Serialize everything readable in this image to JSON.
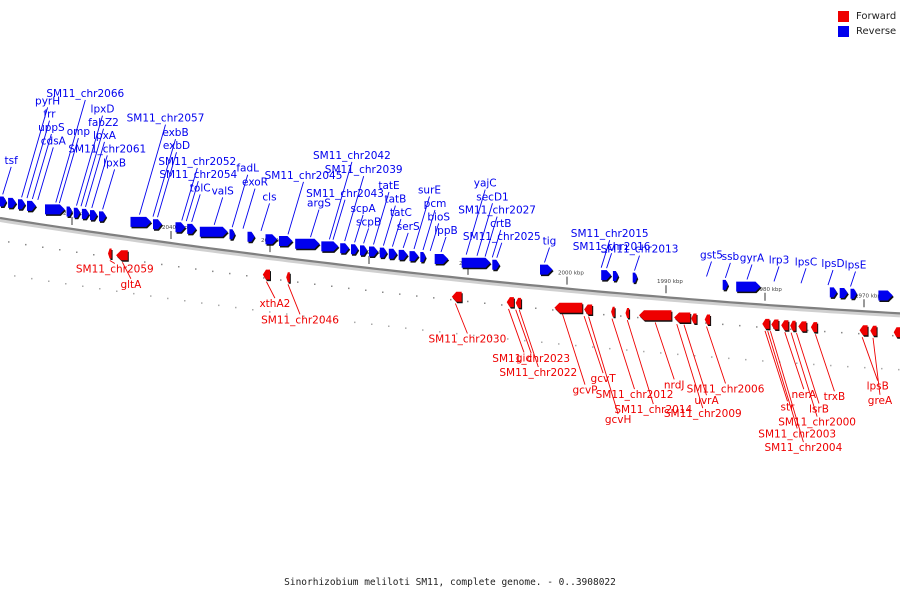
{
  "legend": [
    {
      "label": "Forward",
      "color": "#ee0000"
    },
    {
      "label": "Reverse",
      "color": "#0000ee"
    }
  ],
  "caption": "Sinorhizobium meliloti SM11, complete genome. - 0..3908022",
  "colors": {
    "forward": "#ee0000",
    "reverse": "#0000ee",
    "backbone": "#808080"
  },
  "scale_ticks": [
    {
      "label": "2050 kbp",
      "pos": 8
    },
    {
      "label": "2040 kbp",
      "pos": 19
    },
    {
      "label": "2030 kbp",
      "pos": 30
    },
    {
      "label": "2020 kbp",
      "pos": 41
    },
    {
      "label": "2010 kbp",
      "pos": 52
    },
    {
      "label": "2000 kbp",
      "pos": 63
    },
    {
      "label": "1990 kbp",
      "pos": 74
    },
    {
      "label": "1980 kbp",
      "pos": 85
    },
    {
      "label": "1970 kbp",
      "pos": 96
    }
  ],
  "reverse_genes": [
    {
      "s": 0.0,
      "e": 0.7
    },
    {
      "s": 0.9,
      "e": 1.8
    },
    {
      "s": 2.0,
      "e": 2.8
    },
    {
      "s": 3.0,
      "e": 4.0
    },
    {
      "s": 5.0,
      "e": 7.2
    },
    {
      "s": 7.4,
      "e": 8.0
    },
    {
      "s": 8.2,
      "e": 8.9
    },
    {
      "s": 9.1,
      "e": 9.9
    },
    {
      "s": 10.0,
      "e": 10.8
    },
    {
      "s": 11.0,
      "e": 11.8
    },
    {
      "s": 14.5,
      "e": 16.8
    },
    {
      "s": 17.0,
      "e": 18.0
    },
    {
      "s": 19.5,
      "e": 20.6
    },
    {
      "s": 20.8,
      "e": 21.8
    },
    {
      "s": 22.2,
      "e": 25.3
    },
    {
      "s": 25.5,
      "e": 26.1
    },
    {
      "s": 27.5,
      "e": 28.3
    },
    {
      "s": 29.5,
      "e": 30.8
    },
    {
      "s": 31.0,
      "e": 32.5
    },
    {
      "s": 32.8,
      "e": 35.5
    },
    {
      "s": 35.7,
      "e": 37.6
    },
    {
      "s": 37.8,
      "e": 38.8
    },
    {
      "s": 39.0,
      "e": 39.8
    },
    {
      "s": 40.0,
      "e": 40.8
    },
    {
      "s": 41.0,
      "e": 42.0
    },
    {
      "s": 42.2,
      "e": 43.0
    },
    {
      "s": 43.2,
      "e": 44.1
    },
    {
      "s": 44.3,
      "e": 45.3
    },
    {
      "s": 45.5,
      "e": 46.5
    },
    {
      "s": 46.7,
      "e": 47.3
    },
    {
      "s": 48.3,
      "e": 49.8
    },
    {
      "s": 51.3,
      "e": 54.5
    },
    {
      "s": 54.7,
      "e": 55.5
    },
    {
      "s": 60.0,
      "e": 61.4
    },
    {
      "s": 66.8,
      "e": 67.9
    },
    {
      "s": 68.1,
      "e": 68.7
    },
    {
      "s": 70.3,
      "e": 70.8
    },
    {
      "s": 80.3,
      "e": 80.9
    },
    {
      "s": 81.8,
      "e": 84.5
    },
    {
      "s": 92.2,
      "e": 93.0
    },
    {
      "s": 93.3,
      "e": 94.2
    },
    {
      "s": 94.5,
      "e": 95.2
    },
    {
      "s": 97.6,
      "e": 99.2
    }
  ],
  "forward_genes": [
    {
      "s": 12.0,
      "e": 12.4
    },
    {
      "s": 12.9,
      "e": 14.2
    },
    {
      "s": 29.2,
      "e": 30.0
    },
    {
      "s": 31.8,
      "e": 32.2
    },
    {
      "s": 50.2,
      "e": 51.3
    },
    {
      "s": 56.3,
      "e": 57.1
    },
    {
      "s": 57.3,
      "e": 57.9
    },
    {
      "s": 61.6,
      "e": 64.7
    },
    {
      "s": 64.9,
      "e": 65.8
    },
    {
      "s": 67.9,
      "e": 68.3
    },
    {
      "s": 69.5,
      "e": 69.9
    },
    {
      "s": 71.0,
      "e": 74.6
    },
    {
      "s": 74.9,
      "e": 76.7
    },
    {
      "s": 76.8,
      "e": 77.4
    },
    {
      "s": 78.3,
      "e": 78.9
    },
    {
      "s": 84.7,
      "e": 85.5
    },
    {
      "s": 85.7,
      "e": 86.5
    },
    {
      "s": 86.8,
      "e": 87.6
    },
    {
      "s": 87.8,
      "e": 88.4
    },
    {
      "s": 88.7,
      "e": 89.6
    },
    {
      "s": 90.1,
      "e": 90.8
    },
    {
      "s": 95.5,
      "e": 96.4
    },
    {
      "s": 96.7,
      "e": 97.4
    },
    {
      "s": 99.3,
      "e": 100.0
    }
  ],
  "reverse_labels": [
    {
      "text": "tsf",
      "pos": 0.3,
      "level": 1
    },
    {
      "text": "pyrH",
      "pos": 2.4,
      "level": 6
    },
    {
      "text": "frr",
      "pos": 3.0,
      "level": 5
    },
    {
      "text": "uppS",
      "pos": 3.6,
      "level": 4
    },
    {
      "text": "cdsA",
      "pos": 4.2,
      "level": 3
    },
    {
      "text": "SM11_chr2066",
      "pos": 6.2,
      "level": 7
    },
    {
      "text": "omp",
      "pos": 6.6,
      "level": 4
    },
    {
      "text": "lpxD",
      "pos": 8.5,
      "level": 6
    },
    {
      "text": "fabZ2",
      "pos": 9.0,
      "level": 5
    },
    {
      "text": "lpxA",
      "pos": 9.5,
      "level": 4
    },
    {
      "text": "SM11_chr2061",
      "pos": 10.2,
      "level": 3
    },
    {
      "text": "lpxB",
      "pos": 11.4,
      "level": 2
    },
    {
      "text": "SM11_chr2057",
      "pos": 15.5,
      "level": 6
    },
    {
      "text": "exbB",
      "pos": 17.0,
      "level": 5
    },
    {
      "text": "exbD",
      "pos": 17.5,
      "level": 4
    },
    {
      "text": "SM11_chr2052",
      "pos": 20.2,
      "level": 3
    },
    {
      "text": "SM11_chr2054",
      "pos": 20.7,
      "level": 2
    },
    {
      "text": "tolC",
      "pos": 21.3,
      "level": 1
    },
    {
      "text": "valS",
      "pos": 23.8,
      "level": 1
    },
    {
      "text": "fadL",
      "pos": 25.8,
      "level": 3
    },
    {
      "text": "exoR",
      "pos": 27.0,
      "level": 2
    },
    {
      "text": "cls",
      "pos": 29.0,
      "level": 1
    },
    {
      "text": "SM11_chr2045",
      "pos": 32.0,
      "level": 3
    },
    {
      "text": "argS",
      "pos": 34.5,
      "level": 1
    },
    {
      "text": "SM11_chr2042",
      "pos": 36.6,
      "level": 5
    },
    {
      "text": "SM11_chr2043",
      "pos": 37.0,
      "level": 2
    },
    {
      "text": "SM11_chr2039",
      "pos": 38.3,
      "level": 4
    },
    {
      "text": "scpA",
      "pos": 39.4,
      "level": 1
    },
    {
      "text": "scpB",
      "pos": 40.4,
      "level": 0
    },
    {
      "text": "tatE",
      "pos": 41.5,
      "level": 3
    },
    {
      "text": "tatB",
      "pos": 42.6,
      "level": 2
    },
    {
      "text": "tatC",
      "pos": 43.6,
      "level": 1
    },
    {
      "text": "serS",
      "pos": 44.8,
      "level": 0
    },
    {
      "text": "surE",
      "pos": 46.0,
      "level": 3
    },
    {
      "text": "pcm",
      "pos": 47.0,
      "level": 2
    },
    {
      "text": "bioS",
      "pos": 47.8,
      "level": 1
    },
    {
      "text": "lppB",
      "pos": 49.0,
      "level": 0
    },
    {
      "text": "yajC",
      "pos": 51.8,
      "level": 4
    },
    {
      "text": "secD1",
      "pos": 53.0,
      "level": 3
    },
    {
      "text": "SM11_chr2027",
      "pos": 53.9,
      "level": 2
    },
    {
      "text": "crtB",
      "pos": 54.7,
      "level": 1
    },
    {
      "text": "SM11_chr2025",
      "pos": 55.2,
      "level": 0
    },
    {
      "text": "tig",
      "pos": 60.5,
      "level": 0
    },
    {
      "text": "SM11_chr2015",
      "pos": 66.8,
      "level": 1
    },
    {
      "text": "SM11_chr2016",
      "pos": 67.4,
      "level": 0
    },
    {
      "text": "SM11_chr2013",
      "pos": 70.5,
      "level": 0
    },
    {
      "text": "gst5",
      "pos": 78.5,
      "level": 0
    },
    {
      "text": "ssb",
      "pos": 80.6,
      "level": 0
    },
    {
      "text": "gyrA",
      "pos": 83.0,
      "level": 0
    },
    {
      "text": "lrp3",
      "pos": 86.0,
      "level": 0
    },
    {
      "text": "lpsC",
      "pos": 89.0,
      "level": 0
    },
    {
      "text": "lpsD",
      "pos": 92.0,
      "level": 0
    },
    {
      "text": "lpsE",
      "pos": 94.5,
      "level": 0
    }
  ],
  "forward_labels": [
    {
      "text": "SM11_chr2059",
      "pos": 12.2,
      "level": 0
    },
    {
      "text": "gltA",
      "pos": 13.6,
      "level": 1
    },
    {
      "text": "xthA2",
      "pos": 29.6,
      "level": 1
    },
    {
      "text": "SM11_chr2046",
      "pos": 32.0,
      "level": 2
    },
    {
      "text": "SM11_chr2030",
      "pos": 50.6,
      "level": 2
    },
    {
      "text": "gid",
      "pos": 56.5,
      "level": 3
    },
    {
      "text": "SM11_chr2023",
      "pos": 57.3,
      "level": 3
    },
    {
      "text": "SM11_chr2022",
      "pos": 57.7,
      "level": 4
    },
    {
      "text": "gcvP",
      "pos": 62.5,
      "level": 5
    },
    {
      "text": "gcvT",
      "pos": 64.9,
      "level": 4
    },
    {
      "text": "SM11_chr2012",
      "pos": 68.0,
      "level": 5
    },
    {
      "text": "gcvH",
      "pos": 65.4,
      "level": 7
    },
    {
      "text": "SM11_chr2014",
      "pos": 69.7,
      "level": 6
    },
    {
      "text": "nrdJ",
      "pos": 72.8,
      "level": 4
    },
    {
      "text": "SM11_chr2009",
      "pos": 75.2,
      "level": 6
    },
    {
      "text": "uvrA",
      "pos": 76.0,
      "level": 5
    },
    {
      "text": "SM11_chr2006",
      "pos": 78.5,
      "level": 4
    },
    {
      "text": "str",
      "pos": 85.0,
      "level": 5
    },
    {
      "text": "SM11_chr2003",
      "pos": 85.3,
      "level": 7
    },
    {
      "text": "SM11_chr2004",
      "pos": 85.6,
      "level": 8
    },
    {
      "text": "nerA",
      "pos": 87.2,
      "level": 4
    },
    {
      "text": "SM11_chr2000",
      "pos": 87.9,
      "level": 6
    },
    {
      "text": "lsrB",
      "pos": 88.5,
      "level": 5
    },
    {
      "text": "trxB",
      "pos": 90.6,
      "level": 4
    },
    {
      "text": "lpsB",
      "pos": 95.8,
      "level": 3
    },
    {
      "text": "greA",
      "pos": 97.0,
      "level": 4
    }
  ]
}
